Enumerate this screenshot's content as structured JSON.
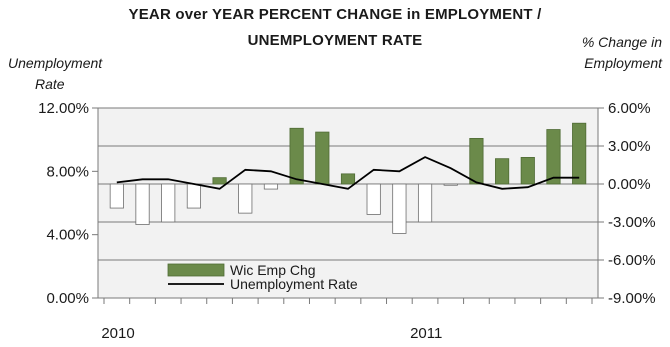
{
  "chart_data": {
    "type": "bar",
    "title_line1": "YEAR over YEAR PERCENT CHANGE in EMPLOYMENT /",
    "title_line2": "UNEMPLOYMENT RATE",
    "y_left_label_line1": "Unemployment",
    "y_left_label_line2": "Rate",
    "y_right_label_line1": "% Change in",
    "y_right_label_line2": "Employment",
    "x_tick_labels": [
      {
        "label": "2010",
        "index": 0
      },
      {
        "label": "2011",
        "index": 12
      }
    ],
    "left_axis": {
      "ylim": [
        0,
        12
      ],
      "ticks": [
        "0.00%",
        "4.00%",
        "8.00%",
        "12.00%"
      ],
      "tick_values": [
        0,
        4,
        8,
        12
      ]
    },
    "right_axis": {
      "ylim": [
        -9,
        6
      ],
      "ticks": [
        "-9.00%",
        "-6.00%",
        "-3.00%",
        "0.00%",
        "3.00%",
        "6.00%"
      ],
      "tick_values": [
        -9,
        -6,
        -3,
        0,
        3,
        6
      ]
    },
    "grid": true,
    "legend_placement": "bottom-left",
    "series": [
      {
        "name": "Wic Emp Chg",
        "kind": "bar",
        "axis": "right",
        "color": "#6b8a4a",
        "negative_color": "#ffffff",
        "values": [
          -1.9,
          -3.2,
          -3.0,
          -1.9,
          0.5,
          -2.3,
          -0.4,
          4.4,
          4.1,
          0.8,
          -2.4,
          -3.9,
          -3.0,
          -0.1,
          3.6,
          2.0,
          2.1,
          4.3,
          4.8
        ]
      },
      {
        "name": "Unemployment Rate",
        "kind": "line",
        "axis": "left",
        "color": "#000000",
        "values": [
          7.3,
          7.5,
          7.5,
          7.2,
          6.9,
          8.1,
          8.0,
          7.5,
          7.2,
          6.9,
          8.1,
          8.0,
          8.9,
          8.2,
          7.3,
          6.9,
          7.0,
          7.6,
          7.6
        ]
      }
    ]
  }
}
